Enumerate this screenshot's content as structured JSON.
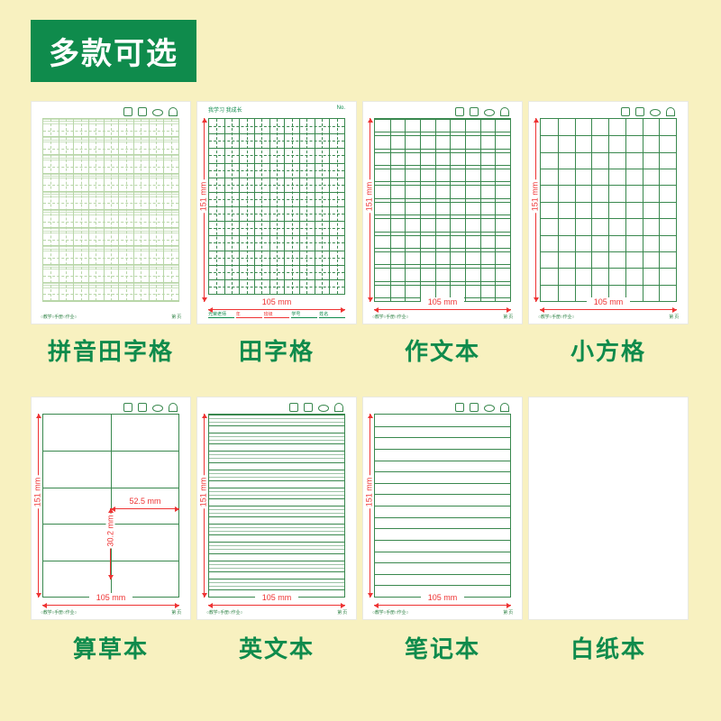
{
  "title": "多款可选",
  "colors": {
    "brand": "#0f8b4c",
    "grid": "#39884e",
    "grid_light": "#b8d6a8",
    "red": "#e33",
    "bg": "#f8f1c0",
    "paper": "#ffffff"
  },
  "page_size": {
    "w_mm": "105 mm",
    "h_mm": "151 mm"
  },
  "footer_left": "○教学○手册○作业○",
  "footer_right": "第  页",
  "tian_header_left": "我学习 我成长",
  "tian_header_right": "No.",
  "tian_footer_labels": [
    "光荣老师",
    "年",
    "班级",
    "学号",
    "姓名"
  ],
  "suancao_dims": {
    "cell_w": "52.5 mm",
    "cell_h": "30.2 mm"
  },
  "items": [
    {
      "id": "pinyin",
      "label": "拼音田字格",
      "type": "pinyin_tian",
      "show_dims": false,
      "header_icons": true,
      "grid": {
        "cols": 9,
        "rows": 10,
        "dash_mid": true,
        "pinyin_lines": 3,
        "border_color": "#b8d6a8",
        "line_color": "#b8d6a8"
      }
    },
    {
      "id": "tian",
      "label": "田字格",
      "type": "tian",
      "show_dims": true,
      "header_text": true,
      "grid": {
        "cols": 9,
        "rows": 12,
        "dash_mid": true,
        "border_color": "#39884e",
        "line_color": "#39884e"
      }
    },
    {
      "id": "zuowen",
      "label": "作文本",
      "type": "zuowen",
      "show_dims": true,
      "header_icons": true,
      "grid": {
        "cols": 9,
        "rows": 11,
        "row_gap": true,
        "border_color": "#39884e",
        "line_color": "#39884e"
      }
    },
    {
      "id": "xiaofang",
      "label": "小方格",
      "type": "fang",
      "show_dims": true,
      "header_icons": true,
      "grid": {
        "cols": 8,
        "rows": 11,
        "border_color": "#39884e",
        "line_color": "#39884e"
      }
    },
    {
      "id": "suancao",
      "label": "算草本",
      "type": "suancao",
      "show_dims": true,
      "header_icons": true,
      "inner_dims": true,
      "grid": {
        "cols": 2,
        "rows": 5,
        "border_color": "#39884e",
        "line_color": "#39884e"
      }
    },
    {
      "id": "yingwen",
      "label": "英文本",
      "type": "english",
      "show_dims": true,
      "header_icons": true,
      "grid": {
        "groups": 10,
        "lines_per_group": 4,
        "border_color": "#39884e",
        "line_color": "#39884e"
      }
    },
    {
      "id": "biji",
      "label": "笔记本",
      "type": "ruled",
      "show_dims": true,
      "header_icons": true,
      "grid": {
        "rows": 16,
        "border_color": "#39884e",
        "line_color": "#39884e"
      }
    },
    {
      "id": "baizhi",
      "label": "白纸本",
      "type": "blank",
      "show_dims": false,
      "header_icons": false
    }
  ]
}
